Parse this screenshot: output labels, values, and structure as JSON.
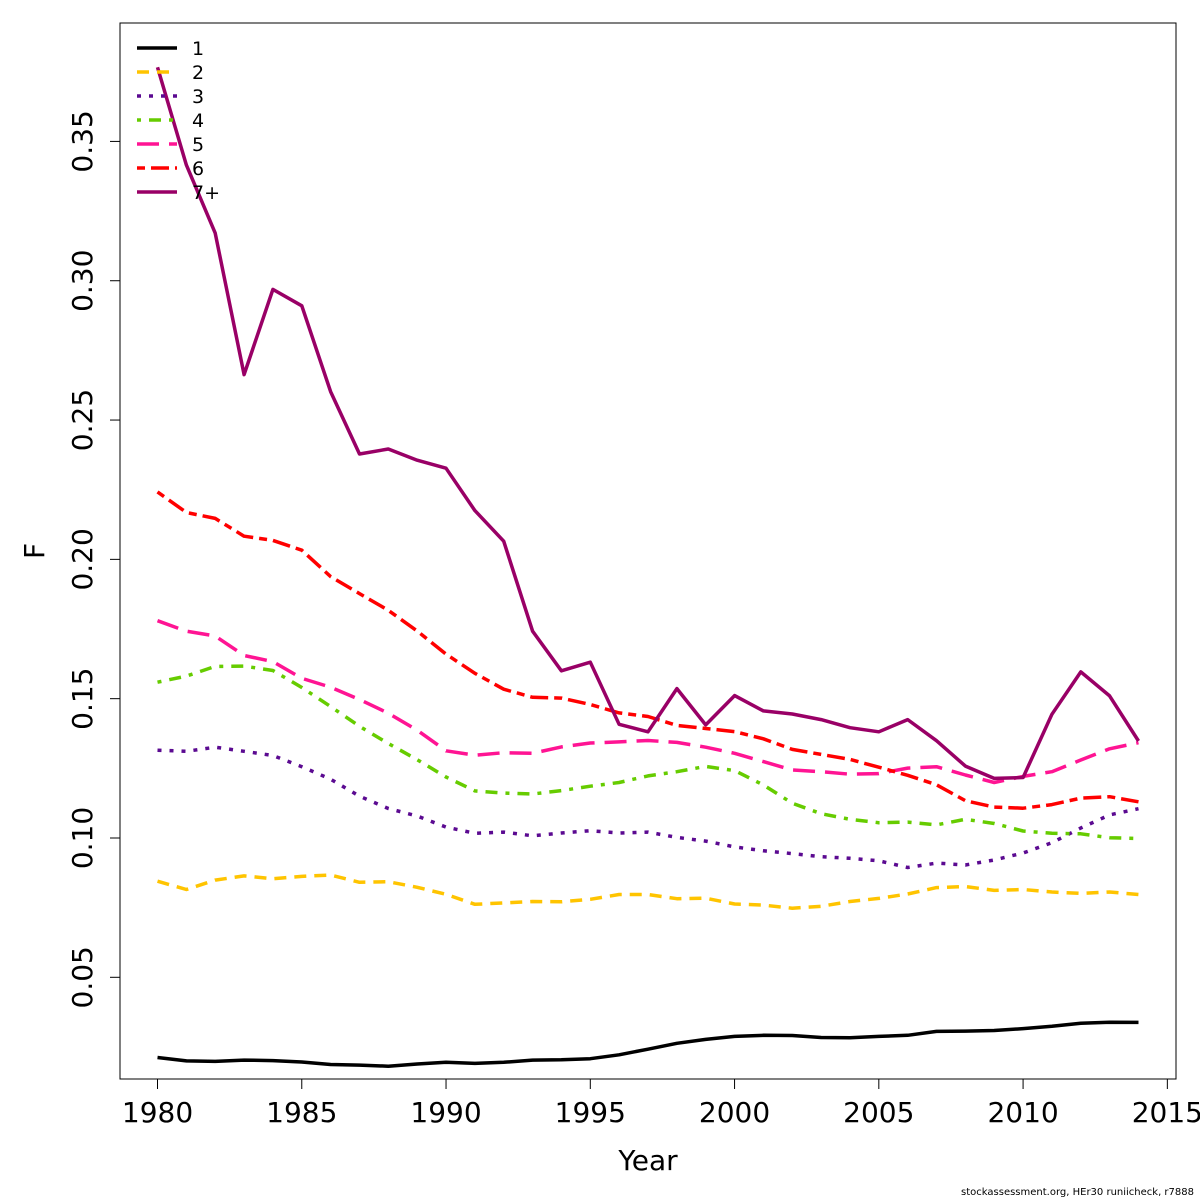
{
  "chart_data": {
    "type": "line",
    "title": "",
    "xlabel": "Year",
    "ylabel": "F",
    "xlim": [
      1978.7,
      2015.3
    ],
    "ylim": [
      0.0135,
      0.3925
    ],
    "x_ticks": [
      1980,
      1985,
      1990,
      1995,
      2000,
      2005,
      2010,
      2015
    ],
    "y_ticks": [
      0.05,
      0.1,
      0.15,
      0.2,
      0.25,
      0.3,
      0.35
    ],
    "y_tick_labels": [
      "0.05",
      "0.10",
      "0.15",
      "0.20",
      "0.25",
      "0.30",
      "0.35"
    ],
    "grid": false,
    "legend_position": "top-left",
    "x": [
      1980,
      1981,
      1982,
      1983,
      1984,
      1985,
      1986,
      1987,
      1988,
      1989,
      1990,
      1991,
      1992,
      1993,
      1994,
      1995,
      1996,
      1997,
      1998,
      1999,
      2000,
      2001,
      2002,
      2003,
      2004,
      2005,
      2006,
      2007,
      2008,
      2009,
      2010,
      2011,
      2012,
      2013,
      2014
    ],
    "series": [
      {
        "name": "1",
        "color": "#000000",
        "dash": "solid",
        "values": [
          0.0212,
          0.02,
          0.0198,
          0.0203,
          0.0201,
          0.0196,
          0.0187,
          0.0185,
          0.0181,
          0.0189,
          0.0195,
          0.0191,
          0.0195,
          0.0203,
          0.0204,
          0.0208,
          0.0222,
          0.0242,
          0.0263,
          0.0277,
          0.0288,
          0.0292,
          0.0291,
          0.0284,
          0.0283,
          0.0288,
          0.0292,
          0.0306,
          0.0307,
          0.0309,
          0.0316,
          0.0324,
          0.0335,
          0.0339,
          0.0338
        ]
      },
      {
        "name": "2",
        "color": "#FFC400",
        "dash": "dashed",
        "values": [
          0.0845,
          0.0815,
          0.0849,
          0.0864,
          0.0854,
          0.0862,
          0.0867,
          0.0841,
          0.0843,
          0.0823,
          0.0798,
          0.0762,
          0.0767,
          0.0772,
          0.0771,
          0.078,
          0.0797,
          0.0797,
          0.0782,
          0.0784,
          0.0763,
          0.0759,
          0.0748,
          0.0755,
          0.0772,
          0.0783,
          0.0799,
          0.0822,
          0.0826,
          0.0812,
          0.0815,
          0.0806,
          0.0801,
          0.0806,
          0.0797
        ]
      },
      {
        "name": "3",
        "color": "#5B0A91",
        "dash": "dotted",
        "values": [
          0.1315,
          0.1311,
          0.1326,
          0.1311,
          0.1296,
          0.1256,
          0.1211,
          0.115,
          0.1106,
          0.1079,
          0.1039,
          0.1017,
          0.1021,
          0.1008,
          0.1018,
          0.1026,
          0.1018,
          0.1021,
          0.1002,
          0.0989,
          0.0968,
          0.0954,
          0.0944,
          0.0933,
          0.0927,
          0.0918,
          0.0894,
          0.091,
          0.0903,
          0.0921,
          0.0946,
          0.0983,
          0.1036,
          0.1083,
          0.1105
        ]
      },
      {
        "name": "4",
        "color": "#66CC00",
        "dash": "dashdot",
        "values": [
          0.1559,
          0.1581,
          0.1616,
          0.1617,
          0.1601,
          0.154,
          0.1472,
          0.1401,
          0.1339,
          0.1281,
          0.1219,
          0.1169,
          0.1161,
          0.1158,
          0.117,
          0.1186,
          0.1199,
          0.1223,
          0.1238,
          0.1257,
          0.1242,
          0.119,
          0.1125,
          0.1087,
          0.1067,
          0.1055,
          0.1057,
          0.1047,
          0.1067,
          0.1052,
          0.1025,
          0.1017,
          0.1015,
          0.1001,
          0.0998
        ]
      },
      {
        "name": "5",
        "color": "#FF1493",
        "dash": "longdash",
        "values": [
          0.178,
          0.1742,
          0.1725,
          0.1655,
          0.1633,
          0.1573,
          0.1541,
          0.1497,
          0.1448,
          0.1387,
          0.1313,
          0.1297,
          0.1306,
          0.1304,
          0.1327,
          0.1341,
          0.1345,
          0.135,
          0.1343,
          0.1326,
          0.1304,
          0.1274,
          0.1244,
          0.1238,
          0.1229,
          0.1231,
          0.1251,
          0.1256,
          0.1226,
          0.1199,
          0.1221,
          0.1238,
          0.128,
          0.132,
          0.1342
        ]
      },
      {
        "name": "6",
        "color": "#FF0000",
        "dash": "twodash",
        "values": [
          0.2242,
          0.2168,
          0.2147,
          0.2083,
          0.2068,
          0.2033,
          0.1938,
          0.1877,
          0.1817,
          0.1743,
          0.166,
          0.1591,
          0.1534,
          0.1505,
          0.1502,
          0.1479,
          0.1449,
          0.1436,
          0.1404,
          0.1393,
          0.1382,
          0.1356,
          0.1318,
          0.13,
          0.1282,
          0.1254,
          0.1225,
          0.1191,
          0.1134,
          0.1111,
          0.1107,
          0.112,
          0.1143,
          0.1148,
          0.113
        ]
      },
      {
        "name": "7+",
        "color": "#990066",
        "dash": "solid",
        "values": [
          0.3766,
          0.3415,
          0.3171,
          0.2663,
          0.2969,
          0.291,
          0.2602,
          0.2378,
          0.2396,
          0.2356,
          0.2327,
          0.2175,
          0.2065,
          0.1742,
          0.16,
          0.1631,
          0.1408,
          0.1381,
          0.1536,
          0.1406,
          0.1511,
          0.1456,
          0.1445,
          0.1425,
          0.1396,
          0.1381,
          0.1425,
          0.1349,
          0.1258,
          0.1214,
          0.1217,
          0.1444,
          0.1596,
          0.151,
          0.1348
        ]
      }
    ]
  },
  "footer": "stockassessment.org, HEr30 runiicheck, r7888"
}
